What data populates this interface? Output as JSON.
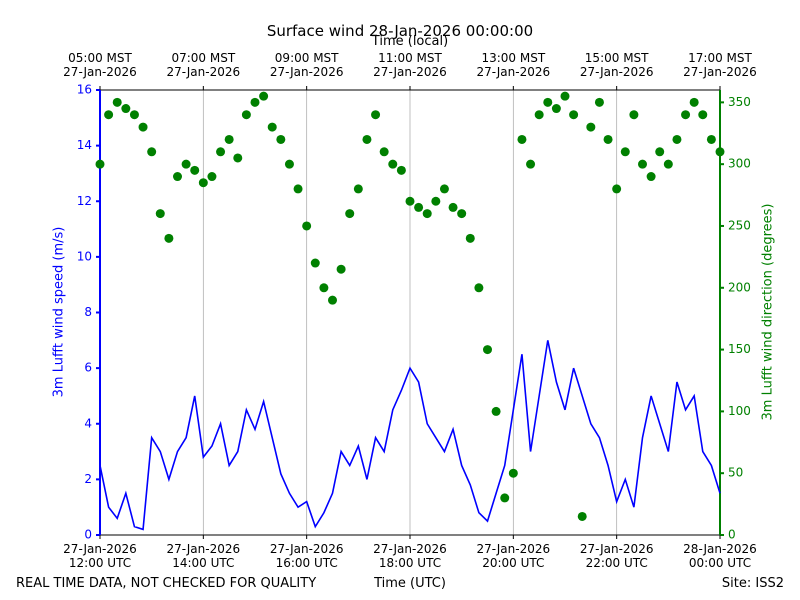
{
  "chart_data": {
    "type": "line",
    "title": "Surface wind 28-Jan-2026 00:00:00",
    "x_label": "Time (UTC)",
    "x2_label": "Time (local)",
    "y_label": "3m Lufft wind speed (m/s)",
    "y2_label": "3m Lufft wind direction (degrees)",
    "footer_left": "REAL TIME DATA, NOT CHECKED FOR QUALITY",
    "footer_right": "Site: ISS2",
    "grid": true,
    "x": [
      "2026-01-27T12:00",
      "2026-01-27T12:10",
      "2026-01-27T12:20",
      "2026-01-27T12:30",
      "2026-01-27T12:40",
      "2026-01-27T12:50",
      "2026-01-27T13:00",
      "2026-01-27T13:10",
      "2026-01-27T13:20",
      "2026-01-27T13:30",
      "2026-01-27T13:40",
      "2026-01-27T13:50",
      "2026-01-27T14:00",
      "2026-01-27T14:10",
      "2026-01-27T14:20",
      "2026-01-27T14:30",
      "2026-01-27T14:40",
      "2026-01-27T14:50",
      "2026-01-27T15:00",
      "2026-01-27T15:10",
      "2026-01-27T15:20",
      "2026-01-27T15:30",
      "2026-01-27T15:40",
      "2026-01-27T15:50",
      "2026-01-27T16:00",
      "2026-01-27T16:10",
      "2026-01-27T16:20",
      "2026-01-27T16:30",
      "2026-01-27T16:40",
      "2026-01-27T16:50",
      "2026-01-27T17:00",
      "2026-01-27T17:10",
      "2026-01-27T17:20",
      "2026-01-27T17:30",
      "2026-01-27T17:40",
      "2026-01-27T17:50",
      "2026-01-27T18:00",
      "2026-01-27T18:10",
      "2026-01-27T18:20",
      "2026-01-27T18:30",
      "2026-01-27T18:40",
      "2026-01-27T18:50",
      "2026-01-27T19:00",
      "2026-01-27T19:10",
      "2026-01-27T19:20",
      "2026-01-27T19:30",
      "2026-01-27T19:40",
      "2026-01-27T19:50",
      "2026-01-27T20:00",
      "2026-01-27T20:10",
      "2026-01-27T20:20",
      "2026-01-27T20:30",
      "2026-01-27T20:40",
      "2026-01-27T20:50",
      "2026-01-27T21:00",
      "2026-01-27T21:10",
      "2026-01-27T21:20",
      "2026-01-27T21:30",
      "2026-01-27T21:40",
      "2026-01-27T21:50",
      "2026-01-27T22:00",
      "2026-01-27T22:10",
      "2026-01-27T22:20",
      "2026-01-27T22:30",
      "2026-01-27T22:40",
      "2026-01-27T22:50",
      "2026-01-27T23:00",
      "2026-01-27T23:10",
      "2026-01-27T23:20",
      "2026-01-27T23:30",
      "2026-01-27T23:40",
      "2026-01-27T23:50",
      "2026-01-28T00:00"
    ],
    "xlim": [
      "2026-01-27T12:00",
      "2026-01-28T00:00"
    ],
    "xticks": [
      {
        "value": "2026-01-27T12:00",
        "label": "27-Jan-2026\n12:00 UTC"
      },
      {
        "value": "2026-01-27T14:00",
        "label": "27-Jan-2026\n14:00 UTC"
      },
      {
        "value": "2026-01-27T16:00",
        "label": "27-Jan-2026\n16:00 UTC"
      },
      {
        "value": "2026-01-27T18:00",
        "label": "27-Jan-2026\n18:00 UTC"
      },
      {
        "value": "2026-01-27T20:00",
        "label": "27-Jan-2026\n20:00 UTC"
      },
      {
        "value": "2026-01-27T22:00",
        "label": "27-Jan-2026\n22:00 UTC"
      },
      {
        "value": "2026-01-28T00:00",
        "label": "28-Jan-2026\n00:00 UTC"
      }
    ],
    "x2ticks": [
      {
        "value": "2026-01-27T12:00",
        "label": "05:00 MST\n27-Jan-2026"
      },
      {
        "value": "2026-01-27T14:00",
        "label": "07:00 MST\n27-Jan-2026"
      },
      {
        "value": "2026-01-27T16:00",
        "label": "09:00 MST\n27-Jan-2026"
      },
      {
        "value": "2026-01-27T18:00",
        "label": "11:00 MST\n27-Jan-2026"
      },
      {
        "value": "2026-01-27T20:00",
        "label": "13:00 MST\n27-Jan-2026"
      },
      {
        "value": "2026-01-27T22:00",
        "label": "15:00 MST\n27-Jan-2026"
      },
      {
        "value": "2026-01-28T00:00",
        "label": "17:00 MST\n27-Jan-2026"
      }
    ],
    "ylim": [
      0,
      16
    ],
    "yticks": [
      0,
      2,
      4,
      6,
      8,
      10,
      12,
      14,
      16
    ],
    "y2lim": [
      0,
      360
    ],
    "y2ticks": [
      0,
      50,
      100,
      150,
      200,
      250,
      300,
      350
    ],
    "y_color": "#0000ff",
    "y2_color": "#008000",
    "series": [
      {
        "name": "3m Lufft wind speed",
        "type": "line",
        "color": "#0000ff",
        "values": [
          2.5,
          1.0,
          0.6,
          1.5,
          0.3,
          0.2,
          3.5,
          3.0,
          2.0,
          3.0,
          3.5,
          5.0,
          2.8,
          3.2,
          4.0,
          2.5,
          3.0,
          4.5,
          3.8,
          4.8,
          3.5,
          2.2,
          1.5,
          1.0,
          1.2,
          0.3,
          0.8,
          1.5,
          3.0,
          2.5,
          3.2,
          2.0,
          3.5,
          3.0,
          4.5,
          5.2,
          6.0,
          5.5,
          4.0,
          3.5,
          3.0,
          3.8,
          2.5,
          1.8,
          0.8,
          0.5,
          1.5,
          2.5,
          4.5,
          6.5,
          3.0,
          5.0,
          7.0,
          5.5,
          4.5,
          6.0,
          5.0,
          4.0,
          3.5,
          2.5,
          1.2,
          2.0,
          1.0,
          3.5,
          5.0,
          4.0,
          3.0,
          5.5,
          4.5,
          5.0,
          3.0,
          2.5,
          1.5
        ]
      },
      {
        "name": "3m Lufft wind direction",
        "type": "scatter",
        "axis": "y2",
        "color": "#008000",
        "values": [
          300,
          340,
          350,
          345,
          340,
          330,
          310,
          260,
          240,
          290,
          300,
          295,
          285,
          290,
          310,
          320,
          305,
          340,
          350,
          355,
          330,
          320,
          300,
          280,
          250,
          220,
          200,
          190,
          215,
          260,
          280,
          320,
          340,
          310,
          300,
          295,
          270,
          265,
          260,
          270,
          280,
          265,
          260,
          240,
          200,
          150,
          100,
          30,
          50,
          320,
          300,
          340,
          350,
          345,
          355,
          340,
          15,
          330,
          350,
          320,
          280,
          310,
          340,
          300,
          290,
          310,
          300,
          320,
          340,
          350,
          340,
          320,
          310
        ]
      }
    ]
  }
}
